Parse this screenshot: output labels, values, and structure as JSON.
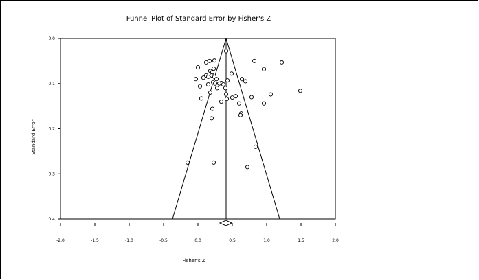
{
  "chart_data": {
    "type": "scatter",
    "title": "Funnel Plot of Standard Error by Fisher's Z",
    "xlabel": "Fisher's Z",
    "ylabel": "Standard Error",
    "xlim": [
      -2.0,
      2.0
    ],
    "ylim": [
      0.0,
      0.4
    ],
    "y_inverted": true,
    "grid": false,
    "x_ticks": [
      "-2.0",
      "-1.5",
      "-1.0",
      "-0.5",
      "0.0",
      "0.5",
      "1.0",
      "1.5",
      "2.0"
    ],
    "y_ticks": [
      "0.0",
      "0.1",
      "0.2",
      "0.3",
      "0.4"
    ],
    "combined_effect": 0.41,
    "diamond": {
      "center": 0.41,
      "lower": 0.32,
      "upper": 0.49
    },
    "funnel": {
      "apex": [
        0.41,
        0.0
      ],
      "base_left": [
        -0.37,
        0.4
      ],
      "base_right": [
        1.19,
        0.4
      ]
    },
    "series": [
      {
        "points": [
          [
            0.41,
            0.028
          ],
          [
            0.82,
            0.05
          ],
          [
            1.22,
            0.053
          ],
          [
            0.12,
            0.053
          ],
          [
            0.17,
            0.05
          ],
          [
            0.24,
            0.049
          ],
          [
            0.0,
            0.064
          ],
          [
            0.23,
            0.067
          ],
          [
            0.96,
            0.068
          ],
          [
            0.18,
            0.072
          ],
          [
            0.21,
            0.075
          ],
          [
            0.49,
            0.078
          ],
          [
            0.2,
            0.082
          ],
          [
            0.12,
            0.082
          ],
          [
            0.24,
            0.085
          ],
          [
            0.15,
            0.085
          ],
          [
            0.27,
            0.09
          ],
          [
            0.08,
            0.087
          ],
          [
            -0.03,
            0.09
          ],
          [
            0.43,
            0.093
          ],
          [
            0.64,
            0.09
          ],
          [
            0.69,
            0.095
          ],
          [
            0.34,
            0.099
          ],
          [
            0.31,
            0.1
          ],
          [
            0.22,
            0.097
          ],
          [
            0.25,
            0.1
          ],
          [
            0.37,
            0.102
          ],
          [
            0.15,
            0.102
          ],
          [
            0.03,
            0.106
          ],
          [
            0.28,
            0.11
          ],
          [
            0.4,
            0.11
          ],
          [
            1.49,
            0.116
          ],
          [
            1.06,
            0.124
          ],
          [
            0.18,
            0.12
          ],
          [
            0.41,
            0.124
          ],
          [
            0.5,
            0.131
          ],
          [
            0.55,
            0.128
          ],
          [
            0.78,
            0.13
          ],
          [
            0.05,
            0.133
          ],
          [
            0.42,
            0.134
          ],
          [
            0.34,
            0.14
          ],
          [
            0.96,
            0.144
          ],
          [
            0.6,
            0.144
          ],
          [
            0.21,
            0.156
          ],
          [
            0.63,
            0.166
          ],
          [
            0.62,
            0.17
          ],
          [
            0.2,
            0.177
          ],
          [
            0.84,
            0.24
          ],
          [
            -0.15,
            0.275
          ],
          [
            0.23,
            0.275
          ],
          [
            0.72,
            0.285
          ]
        ]
      }
    ]
  }
}
